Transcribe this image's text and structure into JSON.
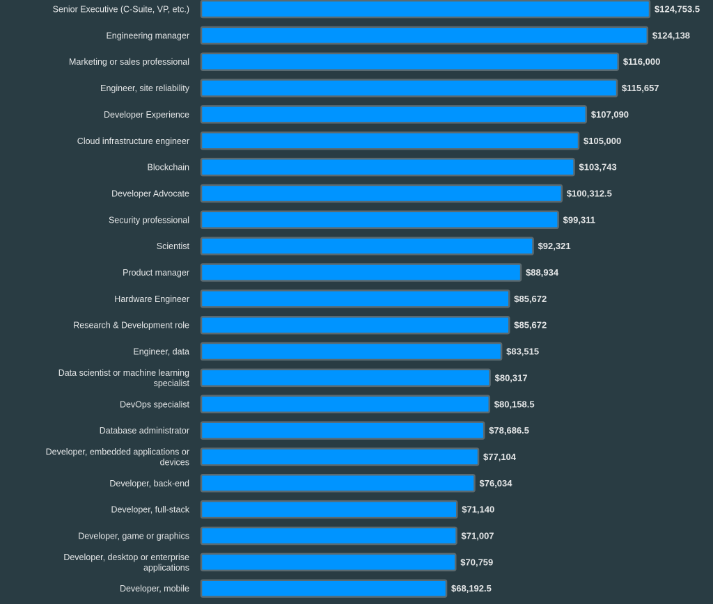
{
  "chart_data": {
    "type": "bar",
    "orientation": "horizontal",
    "categories": [
      "Senior Executive (C-Suite, VP, etc.)",
      "Engineering manager",
      "Marketing or sales professional",
      "Engineer, site reliability",
      "Developer Experience",
      "Cloud infrastructure engineer",
      "Blockchain",
      "Developer Advocate",
      "Security professional",
      "Scientist",
      "Product manager",
      "Hardware Engineer",
      "Research & Development role",
      "Engineer, data",
      "Data scientist or machine learning specialist",
      "DevOps specialist",
      "Database administrator",
      "Developer, embedded applications or devices",
      "Developer, back-end",
      "Developer, full-stack",
      "Developer, game or graphics",
      "Developer, desktop or enterprise applications",
      "Developer, mobile"
    ],
    "values": [
      124753.5,
      124138,
      116000,
      115657,
      107090,
      105000,
      103743,
      100312.5,
      99311,
      92321,
      88934,
      85672,
      85672,
      83515,
      80317,
      80158.5,
      78686.5,
      77104,
      76034,
      71140,
      71007,
      70759,
      68192.5
    ],
    "data_labels": [
      "$124,753.5",
      "$124,138",
      "$116,000",
      "$115,657",
      "$107,090",
      "$105,000",
      "$103,743",
      "$100,312.5",
      "$99,311",
      "$92,321",
      "$88,934",
      "$85,672",
      "$85,672",
      "$83,515",
      "$80,317",
      "$80,158.5",
      "$78,686.5",
      "$77,104",
      "$76,034",
      "$71,140",
      "$71,007",
      "$70,759",
      "$68,192.5"
    ],
    "xlim": [
      0,
      124753.5
    ],
    "grid": false,
    "colors": {
      "bar": "#0094ff",
      "bar_border": "#5b6a70",
      "background": "#293c43",
      "text": "#e4e6e7"
    }
  }
}
